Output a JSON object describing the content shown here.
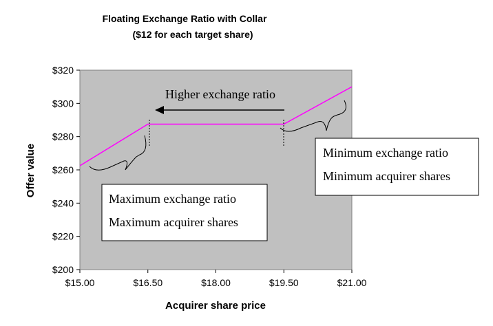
{
  "chart_data": {
    "type": "line",
    "title": "Floating Exchange Ratio with Collar",
    "subtitle": "($12 for each target share)",
    "xlabel": "Acquirer share price",
    "ylabel": "Offer value",
    "xlim": [
      15.0,
      21.0
    ],
    "ylim": [
      200,
      320
    ],
    "x_ticks": [
      15.0,
      16.5,
      18.0,
      19.5,
      21.0
    ],
    "x_tick_labels": [
      "$15.00",
      "$16.50",
      "$18.00",
      "$19.50",
      "$21.00"
    ],
    "y_ticks": [
      200,
      220,
      240,
      260,
      280,
      300,
      320
    ],
    "y_tick_labels": [
      "$200",
      "$220",
      "$240",
      "$260",
      "$280",
      "$300",
      "$320"
    ],
    "series": [
      {
        "x": [
          15.0,
          16.5,
          19.5,
          21.0
        ],
        "values": [
          262.5,
          287.5,
          287.5,
          310
        ],
        "color": "#ff00ff"
      }
    ],
    "plot_background": "#c0c0c0",
    "grid": false,
    "legend": "none",
    "annotations": {
      "arrow_text": "Higher exchange ratio",
      "right_box": [
        "Minimum exchange ratio",
        "Minimum acquirer shares"
      ],
      "left_box": [
        "Maximum exchange ratio",
        "Maximum acquirer shares"
      ]
    }
  }
}
